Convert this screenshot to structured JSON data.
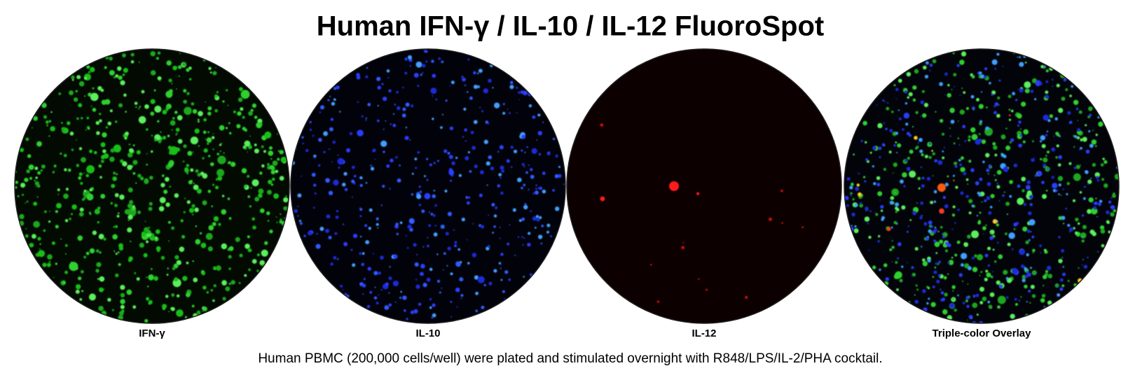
{
  "header": {
    "title": "Human IFN-γ / IL-10 / IL-12 FluoroSpot"
  },
  "panels": [
    {
      "label": "IFN-γ"
    },
    {
      "label": "IL-10"
    },
    {
      "label": "IL-12"
    },
    {
      "label": "Triple-color Overlay"
    }
  ],
  "caption": "Human PBMC (200,000 cells/well) were plated and stimulated overnight with R848/LPS/IL-2/PHA cocktail."
}
